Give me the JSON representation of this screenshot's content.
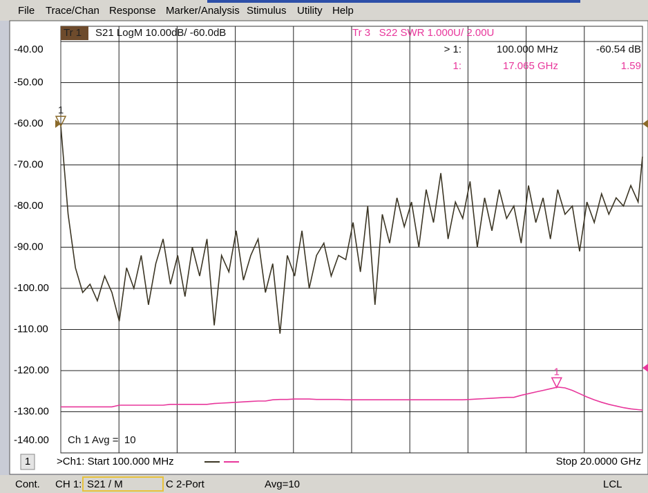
{
  "menu": [
    "File",
    "Trace/Chan",
    "Response",
    "Marker/Analysis",
    "Stimulus",
    "Utility",
    "Help"
  ],
  "chart_data": {
    "type": "line",
    "trace_headers": [
      {
        "id": "Tr 1",
        "text": "S21 LogM 10.00dB/ -60.0dB"
      },
      {
        "text": "Tr 3   S22 SWR 1.000U/ 2.00U"
      }
    ],
    "x": [
      0.1,
      0.35,
      0.6,
      0.85,
      1.1,
      1.35,
      1.6,
      1.85,
      2.1,
      2.35,
      2.6,
      2.85,
      3.1,
      3.35,
      3.6,
      3.85,
      4.1,
      4.35,
      4.6,
      4.85,
      5.1,
      5.35,
      5.6,
      5.85,
      6.1,
      6.35,
      6.6,
      6.85,
      7.1,
      7.35,
      7.6,
      7.85,
      8.1,
      8.35,
      8.6,
      8.85,
      9.1,
      9.35,
      9.6,
      9.85,
      10.1,
      10.35,
      10.6,
      10.85,
      11.1,
      11.35,
      11.6,
      11.85,
      12.1,
      12.35,
      12.6,
      12.85,
      13.1,
      13.35,
      13.6,
      13.85,
      14.1,
      14.35,
      14.6,
      14.85,
      15.1,
      15.35,
      15.6,
      15.85,
      16.1,
      16.35,
      16.6,
      16.85,
      17.1,
      17.35,
      17.6,
      17.85,
      18.1,
      18.35,
      18.6,
      18.85,
      19.1,
      19.35,
      19.6,
      19.85,
      20.0
    ],
    "xlim": [
      0.1,
      20
    ],
    "ylim": [
      -140,
      -36.3
    ],
    "y2lim": [
      0,
      10.37
    ],
    "yticks": [
      {
        "value": -40,
        "label": "-40.00"
      },
      {
        "value": -50,
        "label": "-50.00"
      },
      {
        "value": -60,
        "label": "-60.00"
      },
      {
        "value": -70,
        "label": "-70.00"
      },
      {
        "value": -80,
        "label": "-80.00"
      },
      {
        "value": -90,
        "label": "-90.00"
      },
      {
        "value": -100,
        "label": "-100.00"
      },
      {
        "value": -110,
        "label": "-110.00"
      },
      {
        "value": -120,
        "label": "-120.00"
      },
      {
        "value": -130,
        "label": "-130.00"
      },
      {
        "value": -140,
        "label": "-140.00"
      }
    ],
    "grid": true,
    "series": [
      {
        "color": "#3b3524",
        "values": [
          -60.5,
          -82,
          -95,
          -101,
          -99,
          -103,
          -97,
          -101,
          -108,
          -95,
          -100,
          -92,
          -104,
          -94,
          -88,
          -99,
          -92,
          -102,
          -90,
          -97,
          -88,
          -109,
          -92,
          -96,
          -86,
          -98,
          -92,
          -88,
          -101,
          -94,
          -111,
          -92,
          -97,
          -86,
          -100,
          -92,
          -89,
          -97,
          -92,
          -93,
          -84,
          -96,
          -80,
          -104,
          -82,
          -89,
          -78,
          -85,
          -79,
          -90,
          -76,
          -84,
          -72,
          -88,
          -79,
          -83,
          -74,
          -90,
          -78,
          -86,
          -76,
          -83,
          -80,
          -89,
          -75,
          -84,
          -78,
          -88,
          -76,
          -82,
          -80,
          -91,
          -79,
          -84,
          -77,
          -82,
          -78,
          -80,
          -75,
          -79,
          -68
        ]
      },
      {
        "color": "#e8369b",
        "axis": "y2",
        "values": [
          1.12,
          1.12,
          1.12,
          1.12,
          1.12,
          1.12,
          1.12,
          1.12,
          1.16,
          1.16,
          1.16,
          1.16,
          1.16,
          1.16,
          1.16,
          1.18,
          1.18,
          1.18,
          1.18,
          1.18,
          1.18,
          1.2,
          1.21,
          1.22,
          1.23,
          1.24,
          1.25,
          1.26,
          1.26,
          1.29,
          1.3,
          1.3,
          1.31,
          1.31,
          1.31,
          1.3,
          1.3,
          1.3,
          1.3,
          1.29,
          1.29,
          1.29,
          1.29,
          1.29,
          1.29,
          1.29,
          1.29,
          1.29,
          1.29,
          1.29,
          1.29,
          1.29,
          1.29,
          1.29,
          1.29,
          1.29,
          1.3,
          1.31,
          1.32,
          1.33,
          1.34,
          1.35,
          1.35,
          1.4,
          1.44,
          1.48,
          1.52,
          1.56,
          1.6,
          1.58,
          1.52,
          1.44,
          1.36,
          1.29,
          1.23,
          1.18,
          1.14,
          1.1,
          1.07,
          1.05,
          1.04
        ]
      }
    ],
    "markers": [
      {
        "label": "1",
        "series": 0,
        "x": 0.1,
        "value": -60.54,
        "readout": [
          "> 1:",
          "100.000 MHz",
          "-60.54 dB"
        ]
      },
      {
        "label": "1",
        "series": 1,
        "x": 17.065,
        "value": 1.59,
        "readout": [
          "1:",
          "17.065 GHz",
          "1.59"
        ]
      }
    ],
    "annotation": "Ch 1 Avg =  10",
    "channel": "1",
    "start_label": ">Ch1: Start 100.000 MHz",
    "stop_label": "Stop 20.0000 GHz"
  },
  "status_bar": [
    "Cont.",
    "CH 1:",
    "S21 / M",
    "C 2-Port",
    "Avg=10",
    "LCL"
  ]
}
